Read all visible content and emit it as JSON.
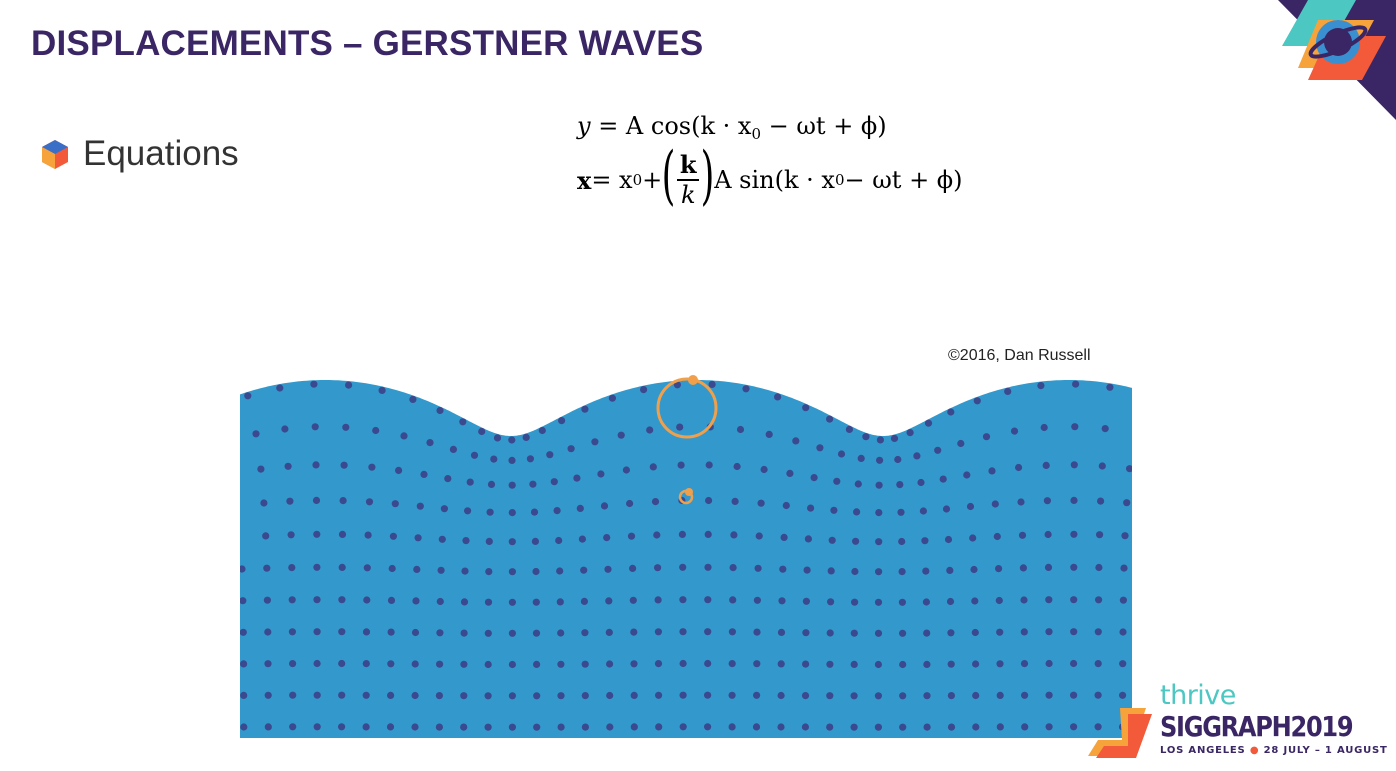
{
  "slide": {
    "title": "DISPLACEMENTS – GERSTNER WAVES",
    "bullet": "Equations"
  },
  "equations": {
    "eq1": {
      "lhs": "y",
      "rest": " = A cos(k · x",
      "sub": "0",
      "tail": " − ωt + ϕ)"
    },
    "eq2": {
      "lhs": "x",
      "mid": " = x",
      "sub": "0",
      "plus": " + ",
      "num": "k",
      "den": "k",
      "rest": "A sin(k · x",
      "sub2": "0",
      "tail": " − ωt + ϕ)"
    }
  },
  "figure": {
    "credit": "©2016, Dan Russell",
    "water_color": "#3399cc",
    "particle_color": "#3b4a8f",
    "highlight_color": "#f0a04b"
  },
  "branding": {
    "tagline": "thrive",
    "event": "SIGGRAPH2019",
    "location": "LOS ANGELES",
    "dates": "28 JULY – 1 AUGUST",
    "accent": "#f25a3a",
    "primary": "#3a2664",
    "teal": "#4cc7c1"
  }
}
